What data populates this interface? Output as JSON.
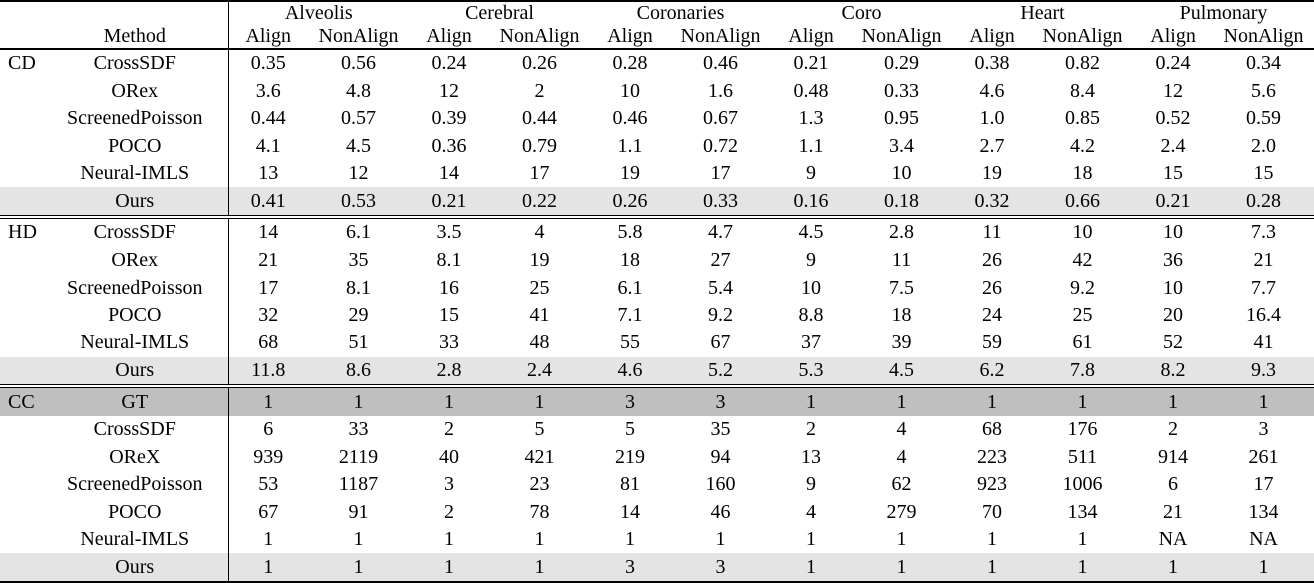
{
  "table": {
    "method_header": "Method",
    "groups": [
      "Alveolis",
      "Cerebral",
      "Coronaries",
      "Coro",
      "Heart",
      "Pulmonary"
    ],
    "subheaders": [
      "Align",
      "NonAlign"
    ],
    "colors": {
      "ours_row_bg": "#e4e4e4",
      "gt_row_bg": "#bfbfbf",
      "border": "#000000"
    },
    "sections": [
      {
        "label": "CD",
        "rows": [
          {
            "method": "CrossSDF",
            "highlight": "none",
            "values": [
              "0.35",
              "0.56",
              "0.24",
              "0.26",
              "0.28",
              "0.46",
              "0.21",
              "0.29",
              "0.38",
              "0.82",
              "0.24",
              "0.34"
            ]
          },
          {
            "method": "ORex",
            "highlight": "none",
            "values": [
              "3.6",
              "4.8",
              "12",
              "2",
              "10",
              "1.6",
              "0.48",
              "0.33",
              "4.6",
              "8.4",
              "12",
              "5.6"
            ]
          },
          {
            "method": "ScreenedPoisson",
            "highlight": "none",
            "values": [
              "0.44",
              "0.57",
              "0.39",
              "0.44",
              "0.46",
              "0.67",
              "1.3",
              "0.95",
              "1.0",
              "0.85",
              "0.52",
              "0.59"
            ]
          },
          {
            "method": "POCO",
            "highlight": "none",
            "values": [
              "4.1",
              "4.5",
              "0.36",
              "0.79",
              "1.1",
              "0.72",
              "1.1",
              "3.4",
              "2.7",
              "4.2",
              "2.4",
              "2.0"
            ]
          },
          {
            "method": "Neural-IMLS",
            "highlight": "none",
            "values": [
              "13",
              "12",
              "14",
              "17",
              "19",
              "17",
              "9",
              "10",
              "19",
              "18",
              "15",
              "15"
            ]
          },
          {
            "method": "Ours",
            "highlight": "light",
            "values": [
              "0.41",
              "0.53",
              "0.21",
              "0.22",
              "0.26",
              "0.33",
              "0.16",
              "0.18",
              "0.32",
              "0.66",
              "0.21",
              "0.28"
            ]
          }
        ]
      },
      {
        "label": "HD",
        "rows": [
          {
            "method": "CrossSDF",
            "highlight": "none",
            "values": [
              "14",
              "6.1",
              "3.5",
              "4",
              "5.8",
              "4.7",
              "4.5",
              "2.8",
              "11",
              "10",
              "10",
              "7.3"
            ]
          },
          {
            "method": "ORex",
            "highlight": "none",
            "values": [
              "21",
              "35",
              "8.1",
              "19",
              "18",
              "27",
              "9",
              "11",
              "26",
              "42",
              "36",
              "21"
            ]
          },
          {
            "method": "ScreenedPoisson",
            "highlight": "none",
            "values": [
              "17",
              "8.1",
              "16",
              "25",
              "6.1",
              "5.4",
              "10",
              "7.5",
              "26",
              "9.2",
              "10",
              "7.7"
            ]
          },
          {
            "method": "POCO",
            "highlight": "none",
            "values": [
              "32",
              "29",
              "15",
              "41",
              "7.1",
              "9.2",
              "8.8",
              "18",
              "24",
              "25",
              "20",
              "16.4"
            ]
          },
          {
            "method": "Neural-IMLS",
            "highlight": "none",
            "values": [
              "68",
              "51",
              "33",
              "48",
              "55",
              "67",
              "37",
              "39",
              "59",
              "61",
              "52",
              "41"
            ]
          },
          {
            "method": "Ours",
            "highlight": "light",
            "values": [
              "11.8",
              "8.6",
              "2.8",
              "2.4",
              "4.6",
              "5.2",
              "5.3",
              "4.5",
              "6.2",
              "7.8",
              "8.2",
              "9.3"
            ]
          }
        ]
      },
      {
        "label": "CC",
        "rows": [
          {
            "method": "GT",
            "highlight": "dark",
            "values": [
              "1",
              "1",
              "1",
              "1",
              "3",
              "3",
              "1",
              "1",
              "1",
              "1",
              "1",
              "1"
            ]
          },
          {
            "method": "CrossSDF",
            "highlight": "none",
            "values": [
              "6",
              "33",
              "2",
              "5",
              "5",
              "35",
              "2",
              "4",
              "68",
              "176",
              "2",
              "3"
            ]
          },
          {
            "method": "OReX",
            "highlight": "none",
            "values": [
              "939",
              "2119",
              "40",
              "421",
              "219",
              "94",
              "13",
              "4",
              "223",
              "511",
              "914",
              "261"
            ]
          },
          {
            "method": "ScreenedPoisson",
            "highlight": "none",
            "values": [
              "53",
              "1187",
              "3",
              "23",
              "81",
              "160",
              "9",
              "62",
              "923",
              "1006",
              "6",
              "17"
            ]
          },
          {
            "method": "POCO",
            "highlight": "none",
            "values": [
              "67",
              "91",
              "2",
              "78",
              "14",
              "46",
              "4",
              "279",
              "70",
              "134",
              "21",
              "134"
            ]
          },
          {
            "method": "Neural-IMLS",
            "highlight": "none",
            "values": [
              "1",
              "1",
              "1",
              "1",
              "1",
              "1",
              "1",
              "1",
              "1",
              "1",
              "NA",
              "NA"
            ]
          },
          {
            "method": "Ours",
            "highlight": "light",
            "values": [
              "1",
              "1",
              "1",
              "1",
              "3",
              "3",
              "1",
              "1",
              "1",
              "1",
              "1",
              "1"
            ]
          }
        ]
      }
    ]
  }
}
